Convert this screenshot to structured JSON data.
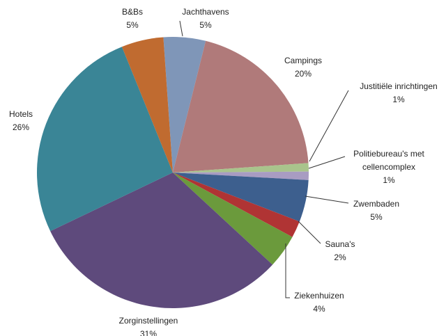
{
  "chart_data": {
    "type": "pie",
    "categories": [
      "Jachthavens",
      "Campings",
      "Justitiële inrichtingen",
      "Politiebureau's met cellencomplex",
      "Zwembaden",
      "Sauna's",
      "Ziekenhuizen",
      "Zorginstellingen",
      "Hotels",
      "B&Bs"
    ],
    "values": [
      5,
      20,
      1,
      1,
      5,
      2,
      4,
      31,
      26,
      5
    ],
    "value_labels": [
      "5%",
      "20%",
      "1%",
      "1%",
      "5%",
      "2%",
      "4%",
      "31%",
      "26%",
      "5%"
    ],
    "colors": [
      "#7f96b8",
      "#b07a7a",
      "#a9c48c",
      "#a89cc2",
      "#3d5f8e",
      "#b03434",
      "#6b9a3c",
      "#5e4a7c",
      "#3a8596",
      "#c06b30"
    ]
  }
}
